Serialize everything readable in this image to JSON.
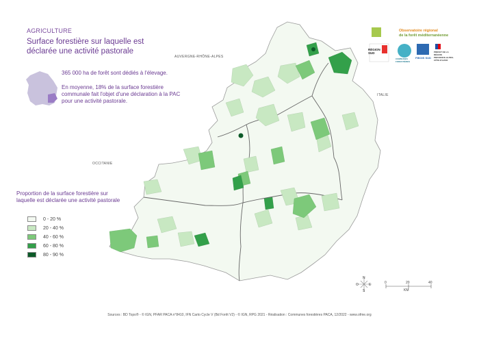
{
  "header": {
    "category": "AGRICULTURE",
    "title_line1": "Surface forestière sur laquelle est",
    "title_line2": "déclarée une activité pastorale"
  },
  "neighbors": {
    "north": "AUVERGNE-RHÔNE-ALPES",
    "east": "ITALIE",
    "west": "OCCITANIE"
  },
  "info": {
    "stat1": "365 000 ha de forêt sont dédiés à l'élevage.",
    "stat2_line1": "En moyenne, 18% de la surface forestière",
    "stat2_line2": "communale fait l'objet d'une déclaration à la PAC",
    "stat2_line3": "pour une activité pastorale."
  },
  "legend": {
    "title_line1": "Proportion de la surface forestière sur",
    "title_line2": "laquelle est déclarée une activité pastorale",
    "items": [
      {
        "label": "0 - 20 %",
        "color": "#f3f9f1"
      },
      {
        "label": "20 - 40 %",
        "color": "#c8e8c2"
      },
      {
        "label": "40 - 60 %",
        "color": "#7dc97a"
      },
      {
        "label": "60 - 80 %",
        "color": "#33a04a"
      },
      {
        "label": "80 - 90 %",
        "color": "#0c5a28"
      }
    ]
  },
  "logos": {
    "observatoire_line1": "Observatoire régional",
    "observatoire_line2": "de la forêt méditerranéenne",
    "region": "RÉGION SUD",
    "communes": "COMMUNES FORESTIÈRES",
    "fibois": "FIBOIS SUD",
    "prefet": "PRÉFET DE LA RÉGION PROVENCE-ALPES-CÔTE D'AZUR"
  },
  "compass": {
    "n": "N",
    "s": "S",
    "e": "E",
    "o": "O"
  },
  "scale": {
    "ticks": [
      "0",
      "20",
      "40"
    ],
    "unit": "KM"
  },
  "source": "Sources : BD Topo® - © IGN, PFAR PACA n°8410, IFN Carto Cycle V (Bd Forêt V2) - © IGN, RPG 2021 - Réalisation : Communes forestières PACA, 12/2022 - www.ofme.org",
  "colors": {
    "accent": "#6a3a92",
    "france_highlight": "#9a7cc5",
    "france_base": "#c9c2dd"
  }
}
